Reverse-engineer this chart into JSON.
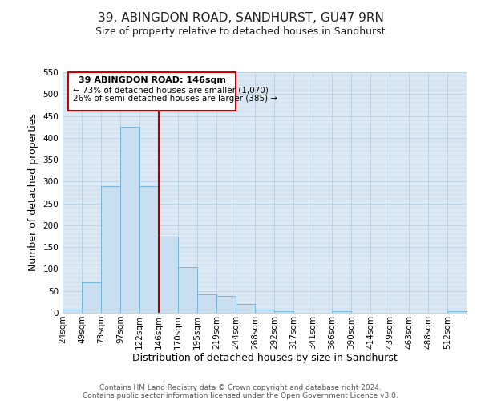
{
  "title": "39, ABINGDON ROAD, SANDHURST, GU47 9RN",
  "subtitle": "Size of property relative to detached houses in Sandhurst",
  "xlabel": "Distribution of detached houses by size in Sandhurst",
  "ylabel": "Number of detached properties",
  "bin_labels": [
    "24sqm",
    "49sqm",
    "73sqm",
    "97sqm",
    "122sqm",
    "146sqm",
    "170sqm",
    "195sqm",
    "219sqm",
    "244sqm",
    "268sqm",
    "292sqm",
    "317sqm",
    "341sqm",
    "366sqm",
    "390sqm",
    "414sqm",
    "439sqm",
    "463sqm",
    "488sqm",
    "512sqm"
  ],
  "bar_heights": [
    8,
    70,
    290,
    425,
    290,
    175,
    105,
    43,
    38,
    20,
    8,
    3,
    0,
    0,
    3,
    0,
    0,
    0,
    0,
    0,
    3
  ],
  "bar_color": "#c9dff0",
  "bar_edgecolor": "#6aafd6",
  "vline_x_index": 5,
  "vline_color": "#aa0000",
  "ann_line1": "39 ABINGDON ROAD: 146sqm",
  "ann_line2": "← 73% of detached houses are smaller (1,070)",
  "ann_line3": "26% of semi-detached houses are larger (385) →",
  "annotation_box_edgecolor": "#cc0000",
  "annotation_box_facecolor": "#ffffff",
  "ylim": [
    0,
    550
  ],
  "yticks": [
    0,
    50,
    100,
    150,
    200,
    250,
    300,
    350,
    400,
    450,
    500,
    550
  ],
  "footer_line1": "Contains HM Land Registry data © Crown copyright and database right 2024.",
  "footer_line2": "Contains public sector information licensed under the Open Government Licence v3.0.",
  "bg_color": "#ffffff",
  "plot_bg_color": "#dce9f5",
  "grid_color": "#b8cfe0",
  "title_fontsize": 11,
  "subtitle_fontsize": 9,
  "axis_label_fontsize": 9,
  "tick_fontsize": 7.5,
  "footer_fontsize": 6.5,
  "ann_fontsize_title": 8,
  "ann_fontsize_body": 7.5
}
